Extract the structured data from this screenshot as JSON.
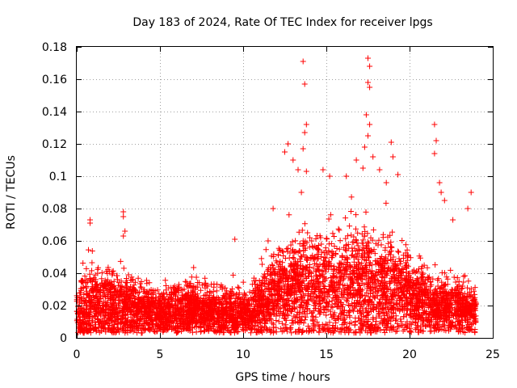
{
  "chart_data": {
    "type": "scatter",
    "title": "Day 183 of 2024, Rate Of TEC Index for receiver lpgs",
    "xlabel": "GPS time / hours",
    "ylabel": "ROTI / TECUs",
    "xlim": [
      0,
      25
    ],
    "ylim": [
      0,
      0.18
    ],
    "xticks": [
      0,
      5,
      10,
      15,
      20,
      25
    ],
    "xtick_labels": [
      "0",
      "5",
      "10",
      "15",
      "20",
      "25"
    ],
    "yticks": [
      0,
      0.02,
      0.04,
      0.06,
      0.08,
      0.1,
      0.12,
      0.14,
      0.16,
      0.18
    ],
    "ytick_labels": [
      "0",
      "0.02",
      "0.04",
      "0.06",
      "0.08",
      "0.1",
      "0.12",
      "0.14",
      "0.16",
      "0.18"
    ],
    "grid": true,
    "marker": "+",
    "color": "#ff0000",
    "series": [
      {
        "name": "ROTI",
        "envelope_note": "dense cloud of points; generated procedurally from the envelope below (hours, ROTI)",
        "envelope": [
          {
            "t": 0.0,
            "base": 0.015,
            "spread": 0.012
          },
          {
            "t": 1.0,
            "base": 0.02,
            "spread": 0.02
          },
          {
            "t": 3.0,
            "base": 0.017,
            "spread": 0.015
          },
          {
            "t": 5.0,
            "base": 0.015,
            "spread": 0.012
          },
          {
            "t": 7.0,
            "base": 0.017,
            "spread": 0.014
          },
          {
            "t": 9.0,
            "base": 0.014,
            "spread": 0.012
          },
          {
            "t": 10.5,
            "base": 0.015,
            "spread": 0.012
          },
          {
            "t": 11.5,
            "base": 0.025,
            "spread": 0.02
          },
          {
            "t": 13.0,
            "base": 0.03,
            "spread": 0.025
          },
          {
            "t": 15.0,
            "base": 0.03,
            "spread": 0.028
          },
          {
            "t": 17.5,
            "base": 0.032,
            "spread": 0.03
          },
          {
            "t": 19.5,
            "base": 0.028,
            "spread": 0.022
          },
          {
            "t": 21.0,
            "base": 0.02,
            "spread": 0.016
          },
          {
            "t": 23.0,
            "base": 0.018,
            "spread": 0.013
          },
          {
            "t": 24.0,
            "base": 0.016,
            "spread": 0.01
          }
        ],
        "outliers": [
          [
            0.8,
            0.073
          ],
          [
            0.8,
            0.071
          ],
          [
            2.8,
            0.078
          ],
          [
            2.8,
            0.075
          ],
          [
            2.9,
            0.066
          ],
          [
            2.8,
            0.063
          ],
          [
            9.5,
            0.061
          ],
          [
            12.5,
            0.115
          ],
          [
            12.7,
            0.12
          ],
          [
            13.0,
            0.11
          ],
          [
            13.3,
            0.104
          ],
          [
            13.5,
            0.09
          ],
          [
            13.6,
            0.171
          ],
          [
            13.7,
            0.157
          ],
          [
            13.8,
            0.132
          ],
          [
            13.7,
            0.127
          ],
          [
            13.6,
            0.117
          ],
          [
            13.8,
            0.103
          ],
          [
            14.8,
            0.104
          ],
          [
            15.2,
            0.1
          ],
          [
            16.2,
            0.1
          ],
          [
            16.8,
            0.11
          ],
          [
            17.2,
            0.105
          ],
          [
            17.5,
            0.173
          ],
          [
            17.6,
            0.168
          ],
          [
            17.5,
            0.158
          ],
          [
            17.6,
            0.155
          ],
          [
            17.4,
            0.138
          ],
          [
            17.6,
            0.132
          ],
          [
            17.5,
            0.125
          ],
          [
            17.3,
            0.118
          ],
          [
            17.8,
            0.112
          ],
          [
            18.2,
            0.104
          ],
          [
            18.6,
            0.096
          ],
          [
            18.9,
            0.121
          ],
          [
            19.0,
            0.112
          ],
          [
            19.3,
            0.101
          ],
          [
            21.5,
            0.132
          ],
          [
            21.6,
            0.122
          ],
          [
            21.5,
            0.114
          ],
          [
            21.8,
            0.096
          ],
          [
            21.9,
            0.09
          ],
          [
            22.1,
            0.085
          ],
          [
            23.7,
            0.09
          ],
          [
            23.5,
            0.08
          ],
          [
            22.6,
            0.073
          ],
          [
            11.8,
            0.08
          ],
          [
            11.5,
            0.06
          ]
        ],
        "approx_point_count": 5200
      }
    ]
  }
}
